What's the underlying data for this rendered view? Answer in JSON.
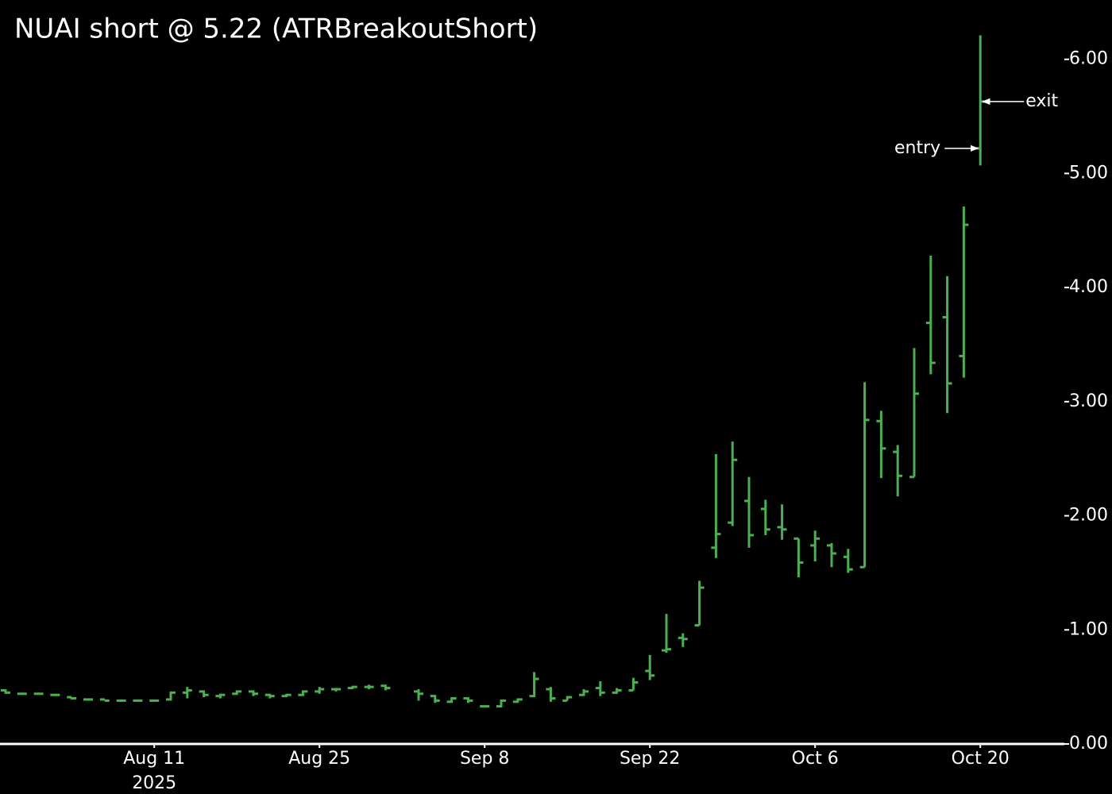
{
  "chart_data": {
    "type": "ohlc",
    "title": "NUAI short @ 5.22 (ATRBreakoutShort)",
    "color": "#4caf50",
    "categories": [
      null,
      null,
      null,
      null,
      null,
      null,
      null,
      null,
      null,
      "Aug 11",
      null,
      null,
      null,
      null,
      null,
      null,
      null,
      null,
      null,
      "Aug 25",
      null,
      null,
      null,
      null,
      null,
      null,
      null,
      null,
      null,
      "Sep 8",
      null,
      null,
      null,
      null,
      null,
      null,
      null,
      null,
      null,
      "Sep 22",
      null,
      null,
      null,
      null,
      null,
      null,
      null,
      null,
      null,
      "Oct 6",
      null,
      null,
      null,
      null,
      null,
      null,
      null,
      null,
      null,
      "Oct 20"
    ],
    "year_label": "2025",
    "open": [
      0.47,
      0.44,
      0.44,
      0.43,
      0.41,
      0.39,
      0.39,
      0.38,
      0.38,
      0.38,
      0.39,
      0.45,
      0.46,
      0.42,
      0.44,
      0.46,
      0.43,
      0.42,
      0.43,
      0.46,
      0.48,
      0.49,
      0.5,
      0.51,
      null,
      0.46,
      0.42,
      0.37,
      0.4,
      0.33,
      0.33,
      0.37,
      0.42,
      0.48,
      0.38,
      0.43,
      0.49,
      0.45,
      0.47,
      0.64,
      0.82,
      0.93,
      1.04,
      1.72,
      1.94,
      2.13,
      2.06,
      1.9,
      1.8,
      1.74,
      1.74,
      1.64,
      1.55,
      2.83,
      2.56,
      2.34,
      3.69,
      3.74,
      3.4,
      5.22
    ],
    "high": [
      0.48,
      0.45,
      0.45,
      0.44,
      0.41,
      0.4,
      0.39,
      0.39,
      0.39,
      0.38,
      0.46,
      0.5,
      0.47,
      0.44,
      0.47,
      0.47,
      0.44,
      0.44,
      0.47,
      0.5,
      0.49,
      0.51,
      0.52,
      0.52,
      null,
      0.48,
      0.43,
      0.41,
      0.41,
      0.34,
      0.39,
      0.4,
      0.63,
      0.5,
      0.42,
      0.48,
      0.55,
      0.49,
      0.58,
      0.78,
      1.14,
      0.97,
      1.43,
      2.54,
      2.65,
      2.34,
      2.14,
      2.1,
      1.8,
      1.87,
      1.76,
      1.71,
      3.17,
      2.92,
      2.62,
      3.47,
      4.28,
      4.1,
      4.71,
      6.21
    ],
    "low": [
      0.44,
      0.43,
      0.43,
      0.42,
      0.39,
      0.38,
      0.38,
      0.37,
      0.37,
      0.37,
      0.38,
      0.4,
      0.41,
      0.4,
      0.43,
      0.42,
      0.4,
      0.41,
      0.42,
      0.44,
      0.46,
      0.48,
      0.48,
      0.47,
      null,
      0.38,
      0.36,
      0.36,
      0.36,
      0.32,
      0.32,
      0.36,
      0.41,
      0.37,
      0.38,
      0.42,
      0.42,
      0.44,
      0.47,
      0.56,
      0.8,
      0.85,
      1.04,
      1.63,
      1.91,
      1.72,
      1.83,
      1.79,
      1.46,
      1.6,
      1.55,
      1.5,
      1.55,
      2.33,
      2.17,
      2.34,
      3.24,
      2.9,
      3.21,
      5.07
    ],
    "close": [
      0.45,
      0.44,
      0.44,
      0.43,
      0.4,
      0.39,
      0.38,
      0.38,
      0.38,
      0.38,
      0.45,
      0.47,
      0.43,
      0.43,
      0.46,
      0.44,
      0.42,
      0.43,
      0.46,
      0.48,
      0.48,
      0.5,
      0.5,
      0.49,
      null,
      0.44,
      0.38,
      0.4,
      0.38,
      0.33,
      0.38,
      0.39,
      0.57,
      0.4,
      0.41,
      0.46,
      0.45,
      0.47,
      0.54,
      0.6,
      0.83,
      0.92,
      1.37,
      1.84,
      2.49,
      1.83,
      1.88,
      1.88,
      1.59,
      1.8,
      1.67,
      1.53,
      2.84,
      2.59,
      2.35,
      3.07,
      3.34,
      3.16,
      4.55,
      5.63
    ],
    "annotations": [
      {
        "text": "entry",
        "value": 5.22
      },
      {
        "text": "exit",
        "value": 5.63
      }
    ],
    "ylim": [
      0,
      6.52
    ],
    "yticks": [
      {
        "value": 0,
        "label": "0.00"
      },
      {
        "value": 1,
        "label": "1.00"
      },
      {
        "value": 2,
        "label": "2.00"
      },
      {
        "value": 3,
        "label": "3.00"
      },
      {
        "value": 4,
        "label": "4.00"
      },
      {
        "value": 5,
        "label": "5.00"
      },
      {
        "value": 6,
        "label": "6.00"
      }
    ]
  }
}
